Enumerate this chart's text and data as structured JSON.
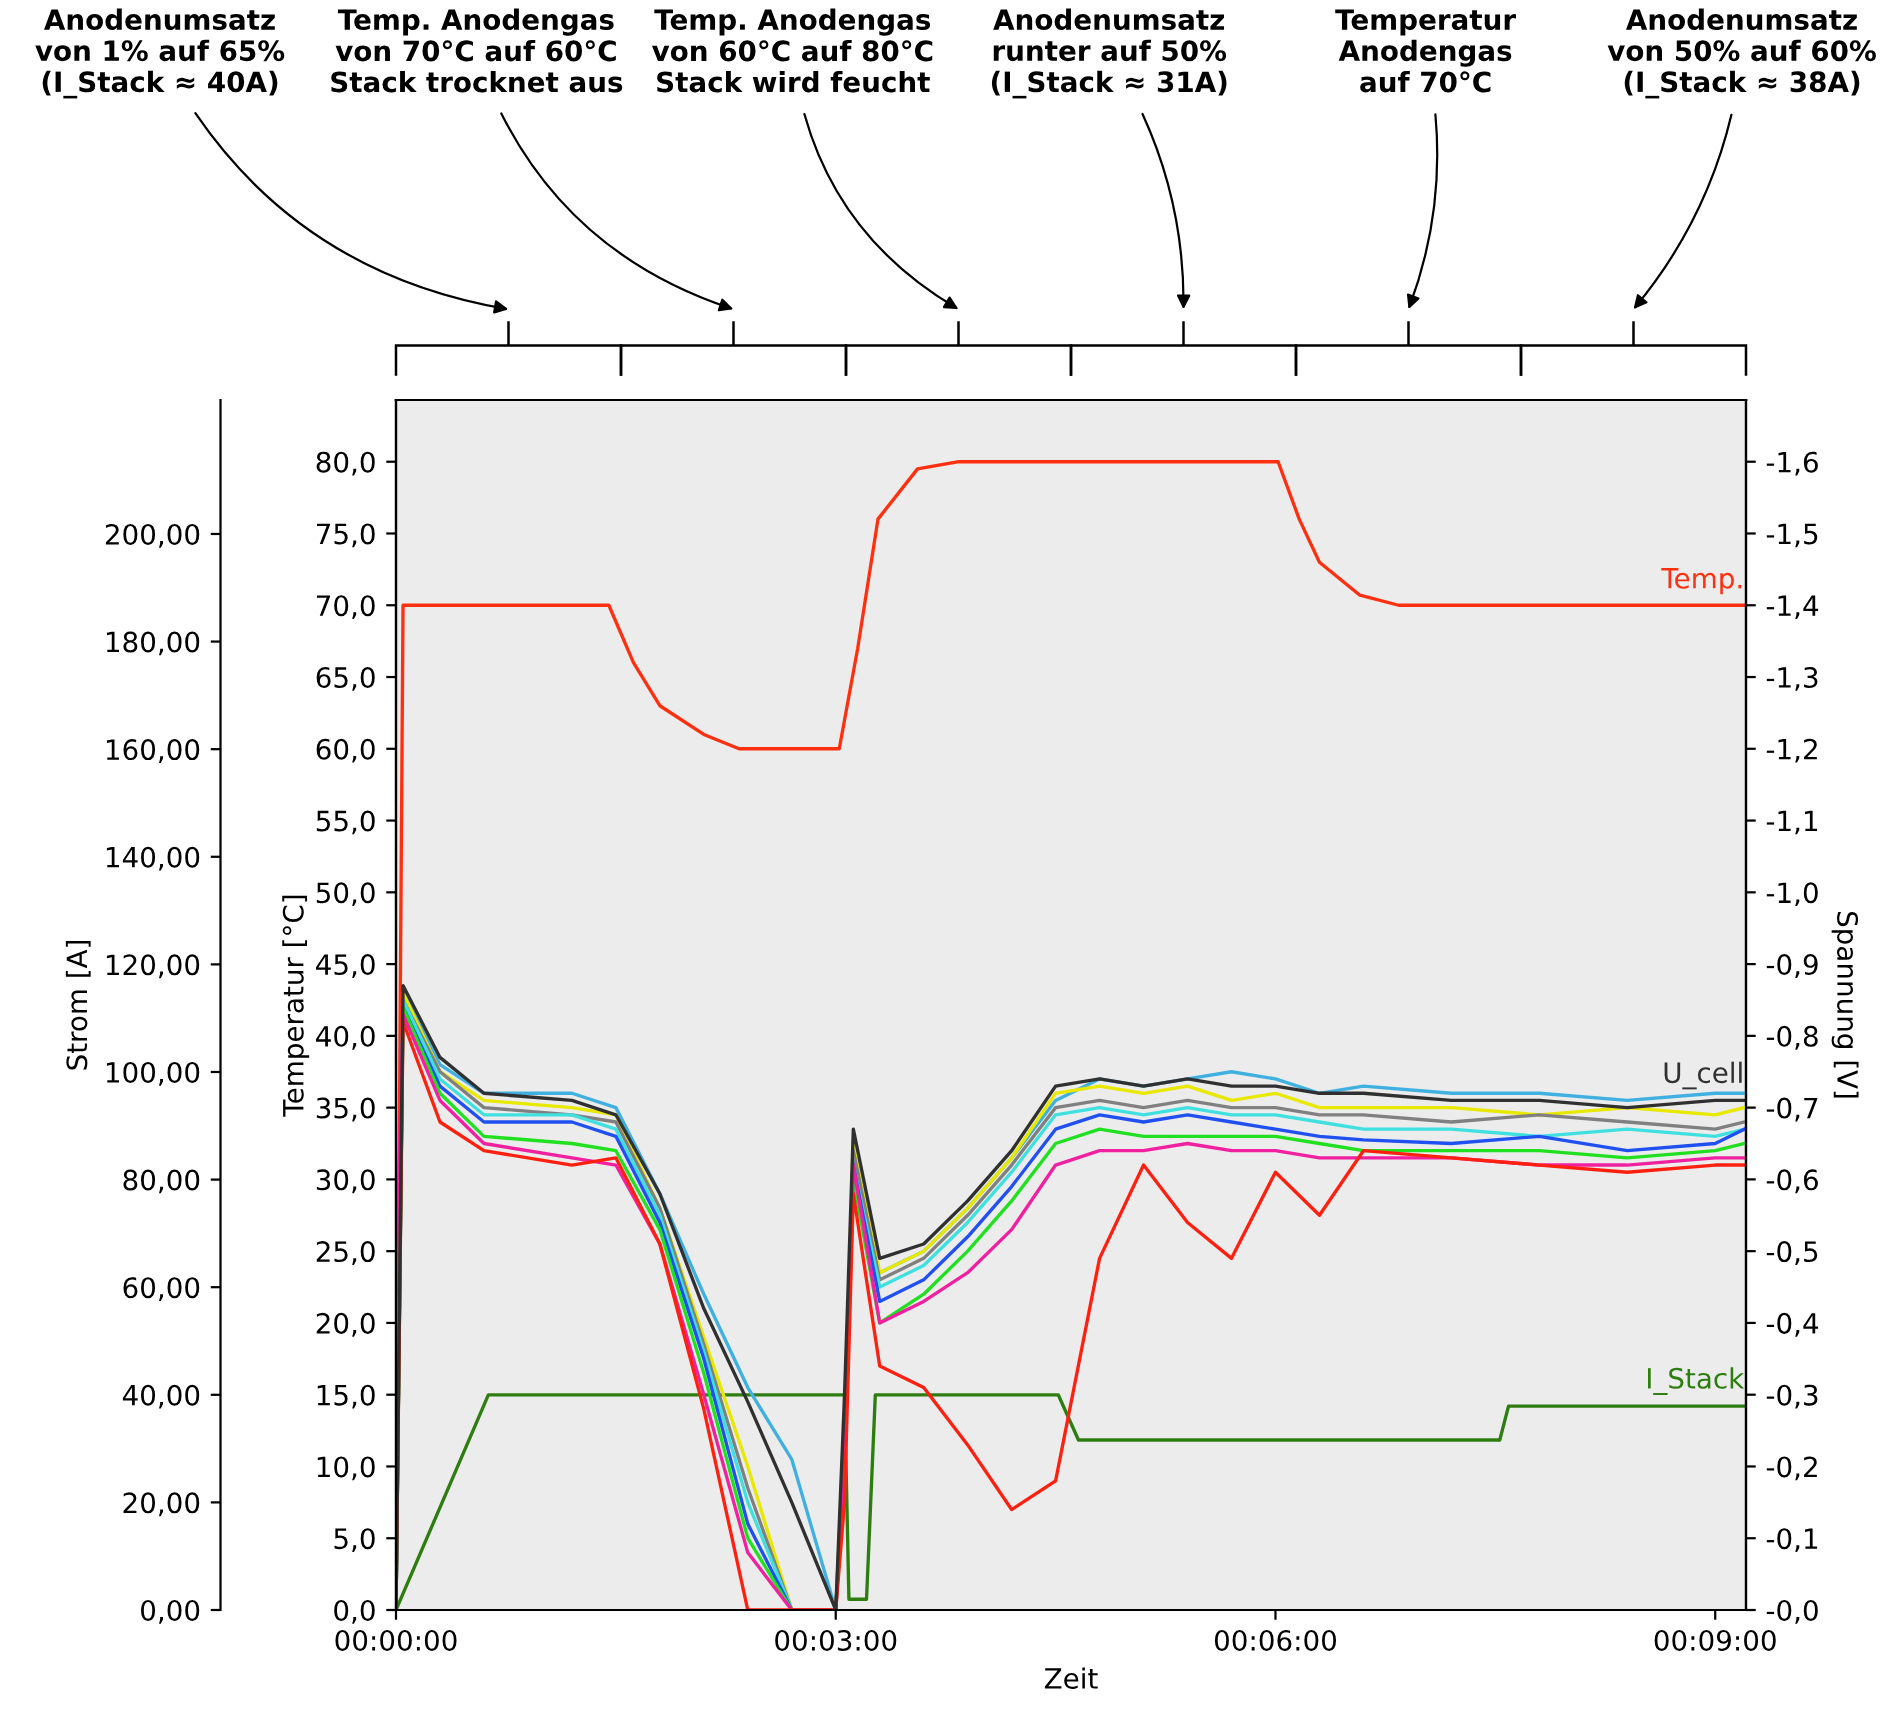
{
  "chart_data": {
    "type": "line",
    "xlabel": "Zeit",
    "ylabel": "Temperatur [°C]",
    "y2label": "Strom [A]",
    "y3label": "Spannung [V]",
    "xlim": [
      0,
      0.1535
    ],
    "xticks": [
      {
        "value": 0,
        "label": "00:00:00"
      },
      {
        "value": 0.05,
        "label": "00:03:00"
      },
      {
        "value": 0.1,
        "label": "00:06:00"
      },
      {
        "value": 0.15,
        "label": "00:09:00"
      }
    ],
    "ylim": [
      0,
      84.3
    ],
    "yticks": [
      {
        "value": 0,
        "label": "0,0"
      },
      {
        "value": 5,
        "label": "5,0"
      },
      {
        "value": 10,
        "label": "10,0"
      },
      {
        "value": 15,
        "label": "15,0"
      },
      {
        "value": 20,
        "label": "20,0"
      },
      {
        "value": 25,
        "label": "25,0"
      },
      {
        "value": 30,
        "label": "30,0"
      },
      {
        "value": 35,
        "label": "35,0"
      },
      {
        "value": 40,
        "label": "40,0"
      },
      {
        "value": 45,
        "label": "45,0"
      },
      {
        "value": 50,
        "label": "50,0"
      },
      {
        "value": 55,
        "label": "55,0"
      },
      {
        "value": 60,
        "label": "60,0"
      },
      {
        "value": 65,
        "label": "65,0"
      },
      {
        "value": 70,
        "label": "70,0"
      },
      {
        "value": 75,
        "label": "75,0"
      },
      {
        "value": 80,
        "label": "80,0"
      }
    ],
    "y2lim": [
      0,
      224.9
    ],
    "y2ticks": [
      {
        "value": 0,
        "label": "0,00"
      },
      {
        "value": 20,
        "label": "20,00"
      },
      {
        "value": 40,
        "label": "40,00"
      },
      {
        "value": 60,
        "label": "60,00"
      },
      {
        "value": 80,
        "label": "80,00"
      },
      {
        "value": 100,
        "label": "100,00"
      },
      {
        "value": 120,
        "label": "120,00"
      },
      {
        "value": 140,
        "label": "140,00"
      },
      {
        "value": 160,
        "label": "160,00"
      },
      {
        "value": 180,
        "label": "180,00"
      },
      {
        "value": 200,
        "label": "200,00"
      }
    ],
    "y3lim": [
      0,
      -1.686
    ],
    "y3ticks": [
      {
        "value": 0,
        "label": "-0,0"
      },
      {
        "value": -0.1,
        "label": "-0,1"
      },
      {
        "value": -0.2,
        "label": "-0,2"
      },
      {
        "value": -0.3,
        "label": "-0,3"
      },
      {
        "value": -0.4,
        "label": "-0,4"
      },
      {
        "value": -0.5,
        "label": "-0,5"
      },
      {
        "value": -0.6,
        "label": "-0,6"
      },
      {
        "value": -0.7,
        "label": "-0,7"
      },
      {
        "value": -0.8,
        "label": "-0,8"
      },
      {
        "value": -0.9,
        "label": "-0,9"
      },
      {
        "value": -1.0,
        "label": "-1,0"
      },
      {
        "value": -1.1,
        "label": "-1,1"
      },
      {
        "value": -1.2,
        "label": "-1,2"
      },
      {
        "value": -1.3,
        "label": "-1,3"
      },
      {
        "value": -1.4,
        "label": "-1,4"
      },
      {
        "value": -1.5,
        "label": "-1,5"
      },
      {
        "value": -1.6,
        "label": "-1,6"
      }
    ],
    "x": [
      0,
      0.0008,
      0.005,
      0.01,
      0.02,
      0.025,
      0.03,
      0.035,
      0.04,
      0.045,
      0.05,
      0.051,
      0.052,
      0.055,
      0.06,
      0.065,
      0.07,
      0.075,
      0.08,
      0.085,
      0.09,
      0.095,
      0.1,
      0.105,
      0.11,
      0.12,
      0.13,
      0.14,
      0.15,
      0.1533
    ],
    "series": [
      {
        "name": "Temp.",
        "color": "#ff3010",
        "x": [
          0,
          0.0008,
          0.0242,
          0.027,
          0.03,
          0.035,
          0.039,
          0.0504,
          0.0525,
          0.0548,
          0.0593,
          0.064,
          0.1003,
          0.1027,
          0.105,
          0.1096,
          0.114,
          0.1533
        ],
        "values": [
          0,
          70,
          70,
          66,
          63,
          61,
          60,
          60,
          67,
          76,
          79.5,
          80,
          80,
          76,
          73,
          70.7,
          70,
          70
        ]
      },
      {
        "name": "I_Stack",
        "color": "#2e7d10",
        "axis": "y2",
        "x": [
          0,
          0.0105,
          0.051,
          0.0515,
          0.0535,
          0.0545,
          0.0753,
          0.0776,
          0.1255,
          0.1265,
          0.1533
        ],
        "values": [
          0,
          40,
          40,
          2,
          2,
          40,
          40,
          31.6,
          31.6,
          37.9,
          37.9
        ]
      },
      {
        "color": "#40b0e0",
        "axis": "y3",
        "values": [
          0,
          -0.86,
          -0.76,
          -0.72,
          -0.72,
          -0.7,
          -0.58,
          -0.44,
          -0.31,
          -0.21,
          0,
          -0.25,
          null,
          -0.47,
          -0.5,
          -0.56,
          -0.63,
          -0.71,
          -0.74,
          -0.73,
          -0.74,
          -0.75,
          -0.74,
          -0.72,
          -0.73,
          -0.72,
          -0.72,
          -0.71,
          -0.72,
          -0.72
        ]
      },
      {
        "color": "#e8e800",
        "axis": "y3",
        "values": [
          0,
          -0.86,
          -0.75,
          -0.71,
          -0.7,
          -0.69,
          -0.56,
          -0.38,
          -0.2,
          0,
          0,
          -0.25,
          -0.66,
          -0.47,
          -0.5,
          -0.56,
          -0.63,
          -0.72,
          -0.73,
          -0.72,
          -0.73,
          -0.71,
          -0.72,
          -0.7,
          -0.7,
          -0.7,
          -0.69,
          -0.7,
          -0.69,
          -0.7
        ]
      },
      {
        "color": "#808080",
        "axis": "y3",
        "values": [
          0,
          -0.85,
          -0.75,
          -0.7,
          -0.69,
          -0.68,
          -0.56,
          -0.37,
          -0.17,
          0,
          0,
          -0.24,
          -0.64,
          -0.46,
          -0.49,
          -0.55,
          -0.62,
          -0.7,
          -0.71,
          -0.7,
          -0.71,
          -0.7,
          -0.7,
          -0.69,
          -0.69,
          -0.68,
          -0.69,
          -0.68,
          -0.67,
          -0.68
        ]
      },
      {
        "color": "#40e0e0",
        "axis": "y3",
        "values": [
          0,
          -0.85,
          -0.74,
          -0.69,
          -0.69,
          -0.67,
          -0.55,
          -0.36,
          -0.15,
          0,
          0,
          -0.22,
          -0.62,
          -0.45,
          -0.48,
          -0.54,
          -0.61,
          -0.69,
          -0.7,
          -0.69,
          -0.7,
          -0.69,
          -0.69,
          -0.68,
          -0.67,
          -0.67,
          -0.66,
          -0.67,
          -0.66,
          -0.67
        ]
      },
      {
        "color": "#2050f0",
        "axis": "y3",
        "values": [
          0,
          -0.84,
          -0.73,
          -0.68,
          -0.68,
          -0.66,
          -0.54,
          -0.35,
          -0.12,
          0,
          0,
          null,
          -0.62,
          -0.43,
          -0.46,
          -0.52,
          -0.59,
          -0.67,
          -0.69,
          -0.68,
          -0.69,
          -0.68,
          -0.67,
          -0.66,
          -0.655,
          -0.65,
          -0.66,
          -0.64,
          -0.65,
          -0.67
        ]
      },
      {
        "color": "#20e020",
        "axis": "y3",
        "values": [
          0,
          -0.84,
          -0.72,
          -0.66,
          -0.65,
          -0.64,
          -0.53,
          -0.33,
          -0.1,
          0,
          0,
          -0.2,
          -0.6,
          -0.4,
          -0.44,
          -0.5,
          -0.57,
          -0.65,
          -0.67,
          -0.66,
          -0.66,
          -0.66,
          -0.66,
          -0.65,
          -0.64,
          -0.64,
          -0.64,
          -0.63,
          -0.64,
          -0.65
        ]
      },
      {
        "color": "#f020a0",
        "axis": "y3",
        "values": [
          -0.45,
          -0.83,
          -0.71,
          -0.65,
          -0.63,
          -0.62,
          -0.51,
          -0.3,
          -0.08,
          0,
          0,
          -0.2,
          -0.62,
          -0.4,
          -0.43,
          -0.47,
          -0.53,
          -0.62,
          -0.64,
          -0.64,
          -0.65,
          -0.64,
          -0.64,
          -0.63,
          -0.63,
          -0.63,
          -0.62,
          -0.62,
          -0.63,
          -0.63
        ]
      },
      {
        "color": "#ff2010",
        "axis": "y3",
        "values": [
          0,
          -0.82,
          -0.68,
          -0.64,
          -0.62,
          -0.63,
          -0.51,
          -0.28,
          0,
          0,
          0,
          -0.15,
          -0.58,
          -0.34,
          -0.31,
          -0.23,
          -0.14,
          -0.18,
          -0.49,
          -0.62,
          -0.54,
          -0.49,
          -0.61,
          -0.55,
          -0.64,
          -0.63,
          -0.62,
          -0.61,
          -0.62,
          -0.62
        ]
      },
      {
        "name": "U_cell",
        "color": "#303030",
        "axis": "y3",
        "values": [
          0,
          -0.87,
          -0.77,
          -0.72,
          -0.71,
          -0.69,
          -0.58,
          -0.42,
          -0.29,
          -0.15,
          0,
          -0.3,
          -0.67,
          -0.49,
          -0.51,
          -0.57,
          -0.64,
          -0.73,
          -0.74,
          -0.73,
          -0.74,
          -0.73,
          -0.73,
          -0.72,
          -0.72,
          -0.71,
          -0.71,
          -0.7,
          -0.71,
          -0.71
        ]
      }
    ],
    "annotations": [
      "Anodenumsatz\nvon 1% auf 65%\n(I_Stack ≈ 40A)",
      "Temp. Anodengas\nvon 70°C auf 60°C\nStack trocknet aus",
      "Temp. Anodengas\nvon 60°C auf 80°C\nStack wird feucht",
      "Anodenumsatz\nrunter auf 50%\n(I_Stack ≈ 31A)",
      "Temperatur\nAnodengas\nauf 70°C",
      "Anodenumsatz\nvon 50% auf 60%\n(I_Stack ≈ 38A)"
    ]
  }
}
